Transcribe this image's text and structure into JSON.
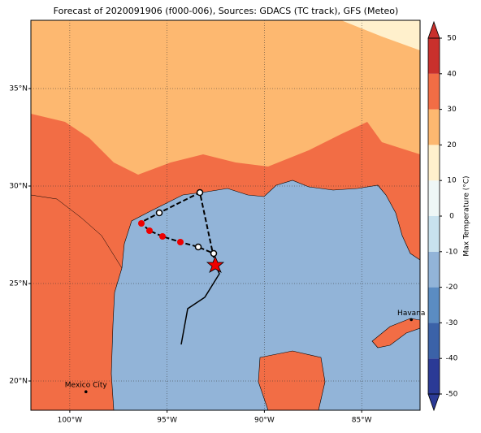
{
  "title": "Forecast of 2020091906 (f000-006), Sources: GDACS (TC track), GFS (Meteo)",
  "map": {
    "xlim": [
      -102,
      -82
    ],
    "ylim": [
      18.5,
      38.5
    ],
    "xticks": [
      {
        "value": -100,
        "label": "100°W"
      },
      {
        "value": -95,
        "label": "95°W"
      },
      {
        "value": -90,
        "label": "90°W"
      },
      {
        "value": -85,
        "label": "85°W"
      }
    ],
    "yticks": [
      {
        "value": 20,
        "label": "20°N"
      },
      {
        "value": 25,
        "label": "25°N"
      },
      {
        "value": 30,
        "label": "30°N"
      },
      {
        "value": 35,
        "label": "35°N"
      }
    ],
    "grid": true
  },
  "colorbar": {
    "label": "Max Temperature (°C)",
    "lim": [
      -50,
      50
    ],
    "ticks": [
      -50,
      -40,
      -30,
      -20,
      -10,
      0,
      10,
      20,
      30,
      40,
      50
    ],
    "colors": [
      "#2b3a96",
      "#3b62a8",
      "#5b8cc2",
      "#92b4d8",
      "#c8e2ee",
      "#eef7f6",
      "#fff0cc",
      "#fdb870",
      "#f26d45",
      "#c9302c"
    ]
  },
  "cities": [
    {
      "name": "Mexico City",
      "lon": -99.17,
      "lat": 19.45
    },
    {
      "name": "Havana",
      "lon": -82.45,
      "lat": 23.15
    }
  ]
}
